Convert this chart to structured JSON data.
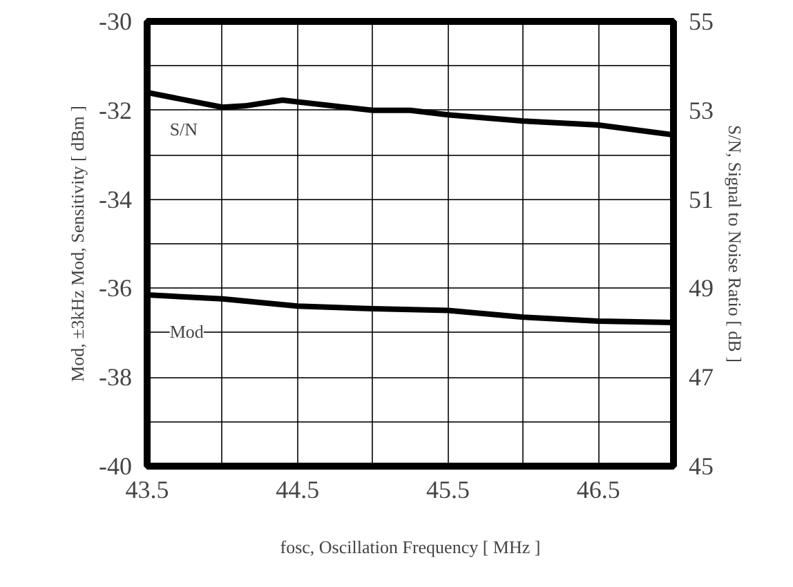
{
  "chart_data": {
    "type": "line",
    "xlabel": "fosc, Oscillation Frequency [ MHz ]",
    "ylabel": "Mod, ±3kHz Mod, Sensitivity [ dBm ]",
    "y2label": "S/N, Signal to Noise Ratio [ dB ]",
    "xlim": [
      43.5,
      47.0
    ],
    "xticks": [
      43.5,
      {
        "value": 44.0,
        "label": null
      },
      44.5,
      {
        "value": 45.0,
        "label": null
      },
      45.5,
      {
        "value": 46.0,
        "label": null
      },
      46.5
    ],
    "ylim": [
      -40,
      -30
    ],
    "yticks": [
      -40,
      {
        "value": -39,
        "label": null
      },
      -38,
      {
        "value": -37,
        "label": null
      },
      -36,
      {
        "value": -35,
        "label": null
      },
      -34,
      {
        "value": -33,
        "label": null
      },
      -32,
      {
        "value": -31,
        "label": null
      },
      -30
    ],
    "y2lim": [
      45,
      55
    ],
    "y2ticks": [
      45,
      47,
      49,
      51,
      53,
      55
    ],
    "grid": true,
    "series": [
      {
        "name": "S/N",
        "color": "#000000",
        "axis": "y2",
        "x": [
          43.5,
          44.0,
          44.15,
          44.4,
          45.0,
          45.25,
          45.5,
          46.0,
          46.5,
          47.0
        ],
        "values": [
          53.4,
          53.07,
          53.1,
          53.23,
          53.0,
          53.0,
          52.9,
          52.76,
          52.67,
          52.45
        ]
      },
      {
        "name": "Mod",
        "color": "#000000",
        "x": [
          43.5,
          44.0,
          44.5,
          45.0,
          45.5,
          46.0,
          46.5,
          47.0
        ],
        "values": [
          -36.15,
          -36.24,
          -36.4,
          -36.46,
          -36.5,
          -36.65,
          -36.74,
          -36.77
        ]
      }
    ]
  }
}
